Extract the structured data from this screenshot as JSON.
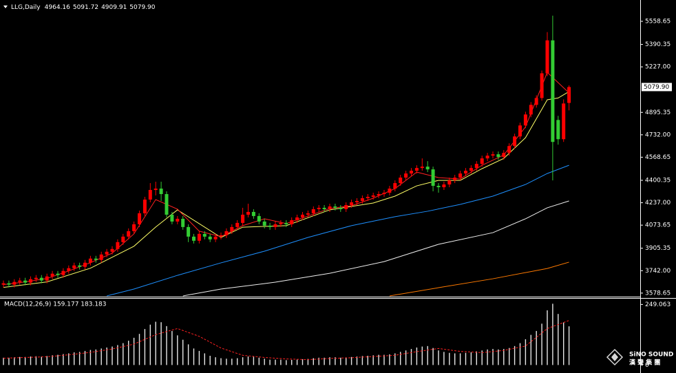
{
  "chart_data": {
    "type": "candlestick",
    "title": "LLG,Daily",
    "header_values": [
      "4964.16",
      "5091.72",
      "4909.91",
      "5079.90"
    ],
    "up_color": "#ff0000",
    "down_color": "#33cc33",
    "ylim": [
      3558,
      5714
    ],
    "yticks": [
      5558.65,
      5390.35,
      {
        "value": 5227,
        "label": "5227.00"
      },
      4895.35,
      {
        "value": 4732,
        "label": "4732.00"
      },
      4568.65,
      4400.35,
      {
        "value": 4237,
        "label": "4237.00"
      },
      4073.65,
      3905.35,
      {
        "value": 3742,
        "label": "3742.00"
      },
      3578.65
    ],
    "last_price": {
      "value": 5079.9,
      "label": "5079.90"
    },
    "open": [
      3640,
      3650,
      3640,
      3660,
      3670,
      3655,
      3680,
      3690,
      3670,
      3700,
      3720,
      3710,
      3740,
      3760,
      3780,
      3770,
      3800,
      3830,
      3820,
      3860,
      3880,
      3900,
      3950,
      3990,
      4030,
      4080,
      4160,
      4260,
      4330,
      4340,
      4300,
      4150,
      4100,
      4120,
      4060,
      3990,
      3960,
      4010,
      3990,
      3970,
      3990,
      4000,
      4030,
      4060,
      4090,
      4150,
      4170,
      4140,
      4100,
      4070,
      4060,
      4080,
      4090,
      4080,
      4110,
      4130,
      4150,
      4160,
      4190,
      4200,
      4190,
      4210,
      4200,
      4190,
      4220,
      4240,
      4250,
      4270,
      4280,
      4290,
      4300,
      4310,
      4340,
      4380,
      4420,
      4450,
      4470,
      4490,
      4500,
      4480,
      4360,
      4350,
      4370,
      4400,
      4420,
      4450,
      4470,
      4490,
      4520,
      4560,
      4580,
      4590,
      4570,
      4600,
      4650,
      4720,
      4800,
      4880,
      4950,
      5000,
      5180,
      5420,
      4840,
      4700,
      4964.16
    ],
    "high": [
      3670,
      3670,
      3680,
      3690,
      3690,
      3700,
      3710,
      3710,
      3720,
      3740,
      3740,
      3760,
      3780,
      3800,
      3800,
      3820,
      3850,
      3850,
      3880,
      3900,
      3920,
      3970,
      4010,
      4050,
      4100,
      4180,
      4280,
      4380,
      4390,
      4390,
      4320,
      4170,
      4140,
      4140,
      4080,
      4010,
      4030,
      4030,
      4010,
      4010,
      4020,
      4050,
      4080,
      4110,
      4200,
      4230,
      4190,
      4160,
      4120,
      4090,
      4100,
      4110,
      4110,
      4130,
      4150,
      4170,
      4180,
      4210,
      4220,
      4220,
      4230,
      4230,
      4220,
      4240,
      4260,
      4270,
      4290,
      4300,
      4310,
      4320,
      4330,
      4360,
      4400,
      4440,
      4470,
      4490,
      4510,
      4560,
      4540,
      4500,
      4380,
      4390,
      4420,
      4440,
      4470,
      4490,
      4510,
      4540,
      4580,
      4600,
      4610,
      4610,
      4620,
      4670,
      4740,
      4820,
      4900,
      4970,
      5020,
      5200,
      5480,
      5600,
      4870,
      4990,
      5091.72
    ],
    "low": [
      3620,
      3620,
      3620,
      3640,
      3635,
      3635,
      3660,
      3650,
      3650,
      3680,
      3690,
      3690,
      3720,
      3740,
      3750,
      3750,
      3780,
      3800,
      3800,
      3840,
      3860,
      3880,
      3930,
      3970,
      4010,
      4060,
      4140,
      4240,
      4290,
      4250,
      4130,
      4080,
      4080,
      4040,
      3950,
      3940,
      3940,
      3970,
      3950,
      3950,
      3970,
      3980,
      4010,
      4040,
      4070,
      4130,
      4120,
      4080,
      4050,
      4040,
      4040,
      4060,
      4060,
      4060,
      4090,
      4110,
      4130,
      4140,
      4170,
      4170,
      4170,
      4180,
      4170,
      4170,
      4200,
      4220,
      4230,
      4250,
      4260,
      4270,
      4280,
      4290,
      4320,
      4360,
      4400,
      4430,
      4450,
      4470,
      4460,
      4320,
      4310,
      4330,
      4350,
      4380,
      4400,
      4430,
      4450,
      4470,
      4500,
      4540,
      4560,
      4550,
      4550,
      4580,
      4630,
      4700,
      4780,
      4860,
      4930,
      4980,
      5160,
      4400,
      4660,
      4680,
      4909.91
    ],
    "close": [
      3650,
      3640,
      3660,
      3670,
      3655,
      3680,
      3690,
      3670,
      3700,
      3720,
      3710,
      3740,
      3760,
      3780,
      3770,
      3800,
      3830,
      3820,
      3860,
      3880,
      3900,
      3950,
      3990,
      4030,
      4080,
      4160,
      4260,
      4330,
      4340,
      4300,
      4150,
      4100,
      4120,
      4060,
      3990,
      3960,
      4010,
      3990,
      3970,
      3990,
      4000,
      4030,
      4060,
      4090,
      4150,
      4170,
      4140,
      4100,
      4070,
      4060,
      4080,
      4090,
      4080,
      4110,
      4130,
      4150,
      4160,
      4190,
      4200,
      4190,
      4210,
      4200,
      4190,
      4220,
      4240,
      4250,
      4270,
      4280,
      4290,
      4300,
      4310,
      4340,
      4380,
      4420,
      4450,
      4470,
      4490,
      4500,
      4480,
      4360,
      4350,
      4370,
      4400,
      4420,
      4450,
      4470,
      4490,
      4520,
      4560,
      4580,
      4590,
      4570,
      4600,
      4650,
      4720,
      4800,
      4880,
      4950,
      5000,
      5180,
      5420,
      4680,
      4700,
      4960,
      5079.9
    ],
    "moving_averages": [
      {
        "color": "#ff7a00",
        "x": [
          71,
          80,
          90,
          100,
          104
        ],
        "values": [
          3558,
          3618,
          3683,
          3758,
          3804
        ]
      },
      {
        "color": "#f0f0f0",
        "x": [
          33,
          40,
          50,
          60,
          70,
          80,
          90,
          96,
          100,
          104
        ],
        "values": [
          3558,
          3608,
          3658,
          3723,
          3808,
          3934,
          4019,
          4120,
          4200,
          4250
        ]
      },
      {
        "color": "#1e90ff",
        "x": [
          19,
          24,
          32,
          40,
          48,
          56,
          64,
          72,
          78,
          84,
          90,
          96,
          100,
          104
        ],
        "values": [
          3558,
          3608,
          3708,
          3799,
          3884,
          3984,
          4070,
          4135,
          4175,
          4225,
          4285,
          4370,
          4450,
          4510
        ]
      },
      {
        "color": "#ffff66",
        "x": [
          0,
          8,
          16,
          24,
          28,
          32,
          40,
          44,
          52,
          60,
          68,
          72,
          76,
          80,
          84,
          88,
          92,
          96,
          100,
          102,
          104
        ],
        "values": [
          3620,
          3660,
          3760,
          3920,
          4060,
          4185,
          3984,
          4059,
          4070,
          4185,
          4235,
          4285,
          4360,
          4400,
          4400,
          4485,
          4560,
          4711,
          4987,
          5000,
          5047
        ]
      },
      {
        "color": "#ff2020",
        "x": [
          0,
          4,
          8,
          12,
          16,
          20,
          24,
          28,
          32,
          36,
          40,
          44,
          48,
          52,
          56,
          60,
          64,
          68,
          72,
          76,
          80,
          84,
          88,
          92,
          96,
          100,
          104
        ],
        "values": [
          3640,
          3660,
          3685,
          3740,
          3800,
          3870,
          4010,
          4260,
          4190,
          4030,
          3990,
          4070,
          4120,
          4085,
          4140,
          4195,
          4215,
          4270,
          4340,
          4460,
          4420,
          4410,
          4510,
          4585,
          4790,
          5187,
          5037
        ]
      }
    ],
    "macd": {
      "label": "MACD(12,26,9) 159.177 183.183",
      "color": "#e8e8e8",
      "ylim": [
        -30,
        270
      ],
      "yticks": [
        249.063,
        0
      ],
      "values": [
        30,
        30,
        32,
        33,
        33,
        35,
        36,
        35,
        37,
        40,
        42,
        45,
        48,
        52,
        54,
        58,
        62,
        64,
        68,
        72,
        76,
        82,
        90,
        100,
        112,
        128,
        148,
        166,
        178,
        176,
        160,
        140,
        122,
        104,
        85,
        68,
        58,
        48,
        38,
        32,
        28,
        26,
        26,
        28,
        32,
        35,
        34,
        30,
        26,
        22,
        22,
        22,
        20,
        21,
        22,
        24,
        25,
        28,
        30,
        30,
        32,
        32,
        30,
        31,
        33,
        35,
        37,
        38,
        40,
        42,
        42,
        44,
        48,
        54,
        60,
        66,
        72,
        76,
        78,
        70,
        60,
        54,
        50,
        48,
        48,
        50,
        52,
        56,
        60,
        64,
        66,
        64,
        66,
        70,
        78,
        90,
        106,
        124,
        140,
        170,
        225,
        252,
        210,
        175,
        159.177
      ],
      "signal": {
        "color": "#ff2020",
        "x": [
          0,
          4,
          8,
          12,
          16,
          20,
          24,
          28,
          32,
          36,
          40,
          44,
          48,
          52,
          56,
          60,
          64,
          68,
          72,
          76,
          80,
          84,
          88,
          92,
          96,
          100,
          104
        ],
        "values": [
          28,
          31,
          34,
          42,
          52,
          66,
          86,
          125,
          150,
          118,
          70,
          40,
          31,
          25,
          22,
          27,
          30,
          35,
          40,
          55,
          68,
          56,
          51,
          60,
          78,
          150,
          183.183
        ]
      }
    },
    "logo": {
      "name": "SiNO SOUND",
      "chinese": "漢 聲 集 團"
    }
  }
}
